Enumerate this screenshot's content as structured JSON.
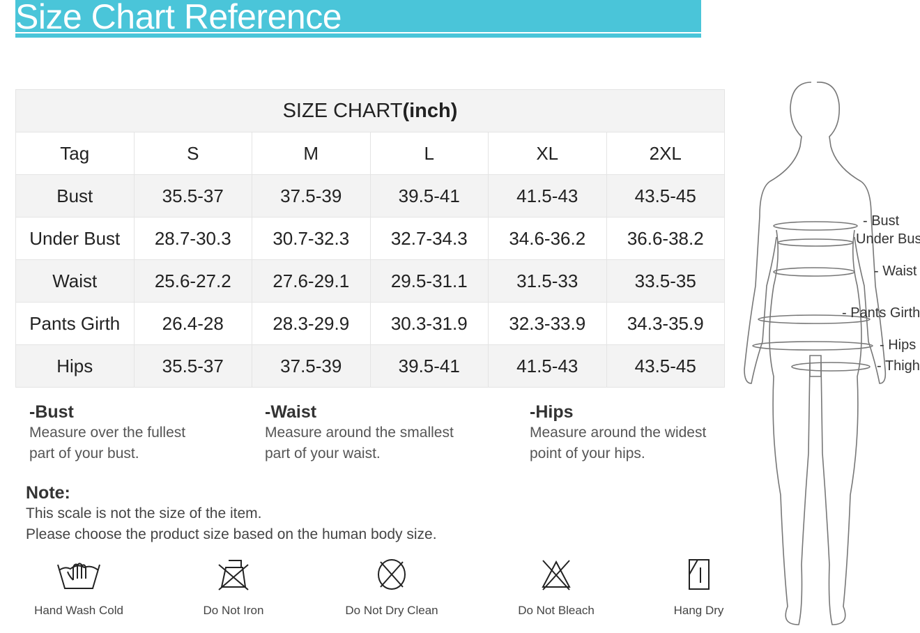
{
  "header": {
    "title": "Size Chart Reference",
    "accent_color": "#4ac5d9"
  },
  "table": {
    "title_prefix": "SIZE CHART",
    "title_unit": "(inch)",
    "columns": [
      "Tag",
      "S",
      "M",
      "L",
      "XL",
      "2XL"
    ],
    "rows": [
      [
        "Bust",
        "35.5-37",
        "37.5-39",
        "39.5-41",
        "41.5-43",
        "43.5-45"
      ],
      [
        "Under Bust",
        "28.7-30.3",
        "30.7-32.3",
        "32.7-34.3",
        "34.6-36.2",
        "36.6-38.2"
      ],
      [
        "Waist",
        "25.6-27.2",
        "27.6-29.1",
        "29.5-31.1",
        "31.5-33",
        "33.5-35"
      ],
      [
        "Pants Girth",
        "26.4-28",
        "28.3-29.9",
        "30.3-31.9",
        "32.3-33.9",
        "34.3-35.9"
      ],
      [
        "Hips",
        "35.5-37",
        "37.5-39",
        "39.5-41",
        "41.5-43",
        "43.5-45"
      ]
    ]
  },
  "guides": [
    {
      "title": "-Bust",
      "line1": "Measure over the fullest",
      "line2": "part of your bust."
    },
    {
      "title": "-Waist",
      "line1": "Measure around the smallest",
      "line2": "part of your waist."
    },
    {
      "title": "-Hips",
      "line1": "Measure around the widest",
      "line2": "point of your hips."
    }
  ],
  "note": {
    "title": "Note:",
    "line1": "This scale is not the size of the item.",
    "line2": "Please choose the product size based on the human body size."
  },
  "care": [
    {
      "icon": "hand-wash-icon",
      "label": "Hand Wash Cold"
    },
    {
      "icon": "do-not-iron-icon",
      "label": "Do Not Iron"
    },
    {
      "icon": "do-not-dry-clean-icon",
      "label": "Do Not Dry Clean"
    },
    {
      "icon": "do-not-bleach-icon",
      "label": "Do Not Bleach"
    },
    {
      "icon": "hang-dry-icon",
      "label": "Hang Dry"
    }
  ],
  "figure_labels": [
    "- Bust",
    "Under Bust",
    "- Waist",
    "- Pants Girth",
    "- Hips",
    "- Thigh"
  ]
}
